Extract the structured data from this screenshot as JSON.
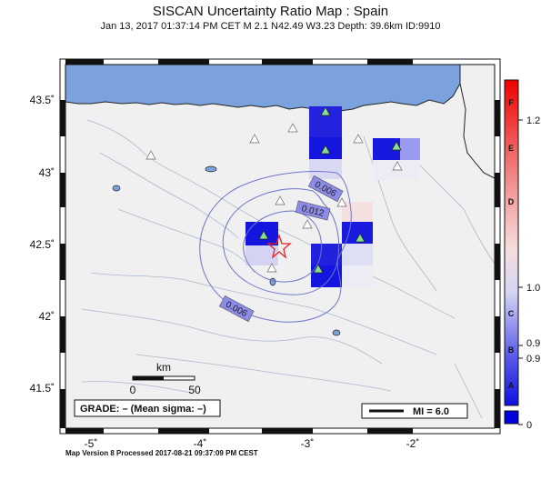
{
  "header": {
    "title": "SISCAN Uncertainty Ratio Map : Spain",
    "subtitle": "Jan 13, 2017 01:37:14 PM CET   M 2.1   N42.49 W3.23   Depth: 39.6km   ID:9910"
  },
  "footer": {
    "text": "Map Version 8 Processed 2017-08-21 09:37:09 PM CEST"
  },
  "map": {
    "lon_labels": [
      "-5˚",
      "-4˚",
      "-3˚",
      "-2˚"
    ],
    "lat_labels": [
      "43.5˚",
      "43˚",
      "42.5˚",
      "42˚",
      "41.5˚"
    ],
    "contour_labels": [
      "0.006",
      "0.012",
      "0.006"
    ],
    "scale_bar": {
      "title": "km",
      "left": "0",
      "right": "50"
    },
    "grade_text": "GRADE: – (Mean sigma: –)",
    "legend_text": "MI = 6.0",
    "colors": {
      "sea": "#7ca2de",
      "land": "#f0f0f0",
      "epicenter": "#e8202a",
      "station": "#86e08e"
    }
  },
  "colorbar": {
    "letters": [
      "F",
      "E",
      "D",
      "C",
      "B",
      "A"
    ],
    "values": [
      "1.2",
      "1.0",
      "0.9",
      "0.9",
      "0"
    ]
  }
}
